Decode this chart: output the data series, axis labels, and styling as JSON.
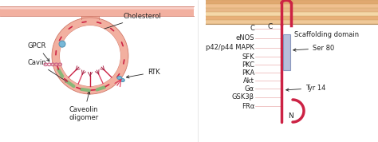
{
  "membrane_fill": "#f2b0a0",
  "membrane_edge": "#d07868",
  "membrane_light": "#f8d0c8",
  "green_color": "#88b878",
  "blue_color": "#78b8d8",
  "red_color": "#cc2244",
  "dark_red": "#aa1133",
  "pink_line": "#e89090",
  "text_color": "#222222",
  "scaffolding_color": "#b0b8d8",
  "scaffolding_edge": "#8090b8",
  "mem_stripe1": "#f0c898",
  "mem_stripe2": "#e8b888",
  "font_size": 6.0,
  "left_panel_labels": [
    "GPCR",
    "Cavin",
    "Cholesterol",
    "RTK",
    "Caveolin\noligomer"
  ],
  "right_labels": [
    "C",
    "eNOS",
    "p42/p44 MAPK",
    "SFK",
    "PKC",
    "PKA",
    "Akt",
    "Gα",
    "GSK3β",
    "FRα"
  ],
  "annotation_labels": [
    "Scaffolding domain",
    "Ser 80",
    "Tyr 14",
    "N"
  ]
}
